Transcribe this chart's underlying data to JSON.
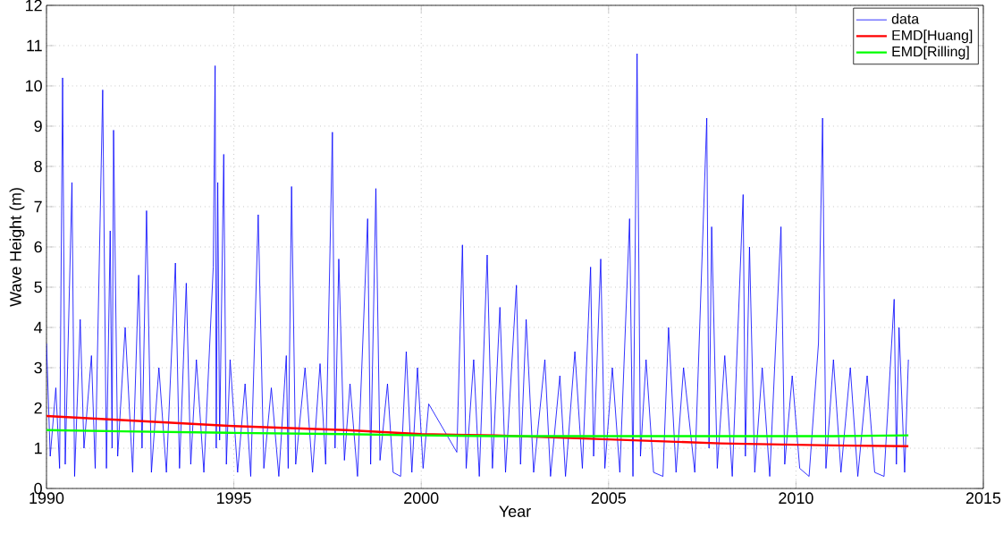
{
  "chart_data": {
    "type": "line",
    "xlabel": "Year",
    "ylabel": "Wave Height (m)",
    "xlim": [
      1990,
      2015
    ],
    "ylim": [
      0,
      12
    ],
    "xticks": [
      1990,
      1995,
      2000,
      2005,
      2010,
      2015
    ],
    "yticks": [
      0,
      1,
      2,
      3,
      4,
      5,
      6,
      7,
      8,
      9,
      10,
      11,
      12
    ],
    "grid": true,
    "legend": "top right",
    "marker": "none",
    "line_style": "solid",
    "series": [
      {
        "name": "data",
        "color": "#0000ff",
        "x": [
          1990.0,
          1990.1,
          1990.25,
          1990.35,
          1990.43,
          1990.5,
          1990.68,
          1990.75,
          1990.9,
          1991.0,
          1991.2,
          1991.3,
          1991.5,
          1991.6,
          1991.7,
          1991.75,
          1991.79,
          1991.9,
          1992.1,
          1992.3,
          1992.46,
          1992.55,
          1992.67,
          1992.8,
          1993.0,
          1993.2,
          1993.44,
          1993.55,
          1993.73,
          1993.85,
          1994.0,
          1994.2,
          1994.45,
          1994.5,
          1994.53,
          1994.57,
          1994.62,
          1994.73,
          1994.8,
          1994.9,
          1995.1,
          1995.3,
          1995.45,
          1995.65,
          1995.8,
          1996.0,
          1996.2,
          1996.4,
          1996.45,
          1996.54,
          1996.65,
          1996.9,
          1997.1,
          1997.3,
          1997.45,
          1997.63,
          1997.7,
          1997.8,
          1997.95,
          1998.1,
          1998.3,
          1998.57,
          1998.65,
          1998.79,
          1998.9,
          1999.1,
          1999.25,
          1999.45,
          1999.6,
          1999.75,
          1999.9,
          2000.05,
          2000.2,
          2000.95,
          2001.1,
          2001.2,
          2001.4,
          2001.55,
          2001.76,
          2001.9,
          2002.1,
          2002.25,
          2002.54,
          2002.65,
          2002.8,
          2003.0,
          2003.3,
          2003.45,
          2003.7,
          2003.85,
          2004.1,
          2004.3,
          2004.52,
          2004.6,
          2004.79,
          2004.9,
          2005.1,
          2005.3,
          2005.56,
          2005.65,
          2005.76,
          2005.85,
          2006.0,
          2006.2,
          2006.45,
          2006.6,
          2006.8,
          2007.0,
          2007.3,
          2007.62,
          2007.68,
          2007.75,
          2007.9,
          2008.1,
          2008.3,
          2008.59,
          2008.65,
          2008.76,
          2008.9,
          2009.1,
          2009.3,
          2009.6,
          2009.7,
          2009.9,
          2010.1,
          2010.35,
          2010.6,
          2010.71,
          2010.8,
          2011.0,
          2011.2,
          2011.45,
          2011.65,
          2011.9,
          2012.1,
          2012.35,
          2012.62,
          2012.68,
          2012.75,
          2012.9,
          2013.0
        ],
        "values": [
          3.6,
          0.8,
          2.5,
          0.5,
          10.2,
          0.6,
          7.6,
          0.3,
          4.2,
          1.0,
          3.3,
          0.5,
          9.9,
          0.5,
          6.4,
          1.0,
          8.9,
          0.8,
          4.0,
          0.4,
          5.3,
          1.0,
          6.9,
          0.4,
          3.0,
          0.4,
          5.6,
          0.5,
          5.1,
          0.6,
          3.2,
          0.4,
          5.5,
          10.5,
          1.0,
          7.6,
          1.2,
          8.3,
          0.6,
          3.2,
          0.4,
          2.6,
          0.3,
          6.8,
          0.5,
          2.5,
          0.3,
          3.3,
          0.5,
          7.5,
          0.6,
          3.0,
          0.4,
          3.1,
          0.6,
          8.85,
          1.0,
          5.7,
          0.7,
          2.6,
          0.3,
          6.7,
          0.6,
          7.45,
          0.7,
          2.6,
          0.4,
          0.3,
          3.4,
          0.4,
          3.0,
          0.5,
          2.1,
          0.9,
          6.05,
          0.5,
          3.2,
          0.3,
          5.8,
          0.5,
          4.5,
          0.4,
          5.05,
          0.6,
          4.2,
          0.4,
          3.2,
          0.3,
          2.8,
          0.3,
          3.4,
          0.5,
          5.5,
          0.8,
          5.7,
          0.5,
          3.0,
          0.4,
          6.7,
          0.3,
          10.8,
          0.8,
          3.2,
          0.4,
          0.3,
          4.0,
          0.4,
          3.0,
          0.4,
          9.2,
          1.0,
          6.5,
          0.5,
          3.3,
          0.3,
          7.3,
          0.8,
          6.0,
          0.4,
          3.0,
          0.3,
          6.5,
          0.6,
          2.8,
          0.5,
          0.3,
          3.6,
          9.2,
          0.5,
          3.2,
          0.4,
          3.0,
          0.3,
          2.8,
          0.4,
          0.3,
          4.7,
          0.6,
          4.0,
          0.4,
          3.2
        ]
      },
      {
        "name": "EMD[Huang]",
        "color": "#ff0000",
        "x": [
          1990,
          1992,
          1995,
          1998,
          2000,
          2002,
          2005,
          2008,
          2011,
          2013
        ],
        "values": [
          1.8,
          1.7,
          1.55,
          1.45,
          1.35,
          1.32,
          1.22,
          1.12,
          1.07,
          1.05
        ]
      },
      {
        "name": "EMD[Rilling]",
        "color": "#00ff00",
        "x": [
          1990,
          1992,
          1995,
          1998,
          2000,
          2002,
          2005,
          2008,
          2011,
          2013
        ],
        "values": [
          1.45,
          1.42,
          1.38,
          1.35,
          1.32,
          1.3,
          1.3,
          1.3,
          1.3,
          1.32
        ]
      }
    ]
  }
}
